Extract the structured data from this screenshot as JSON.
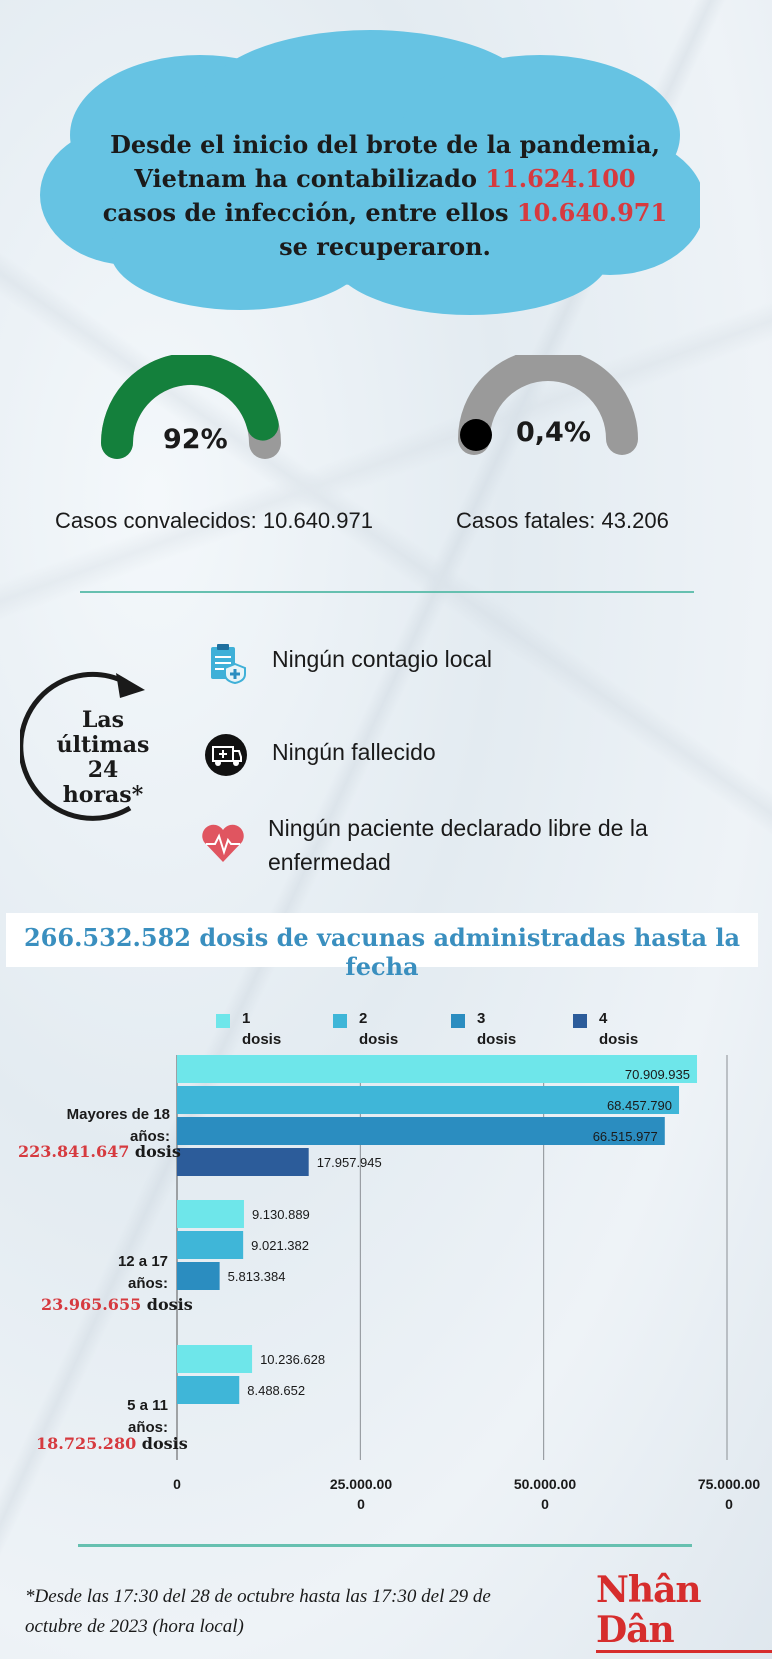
{
  "headline": {
    "part1": "Desde el inicio del brote de la pandemia,",
    "part2": "Vietnam ha contabilizado ",
    "infections": "11.624.100",
    "part3": "casos de infección, entre ellos ",
    "recovered": "10.640.971",
    "part4": "se recuperaron."
  },
  "gauges": [
    {
      "label": "92%",
      "fraction": 0.92,
      "caption": "Casos convalecidos: 10.640.971",
      "color": "#14803c"
    },
    {
      "label": "0,4%",
      "fraction": 0.004,
      "caption": "Casos fatales: 43.206",
      "color": "#000000"
    }
  ],
  "last24": {
    "title_line1": "Las",
    "title_line2": "últimas 24",
    "title_line3": "horas*",
    "items": [
      {
        "icon": "clipboard-icon",
        "text": "Ningún  contagio local"
      },
      {
        "icon": "ambulance-icon",
        "text": "Ningún fallecido"
      },
      {
        "icon": "heart-pulse-icon",
        "text_line1": "Ningún paciente declarado libre de la",
        "text_line2": "enfermedad"
      }
    ]
  },
  "banner": "266.532.582 dosis de vacunas administradas hasta la fecha",
  "chart_data": {
    "type": "bar",
    "orientation": "horizontal",
    "legend": [
      {
        "num": "1",
        "word": "dosis",
        "color": "#6ee6ea"
      },
      {
        "num": "2",
        "word": "dosis",
        "color": "#3fb6d8"
      },
      {
        "num": "3",
        "word": "dosis",
        "color": "#2b8dc0"
      },
      {
        "num": "4",
        "word": "dosis",
        "color": "#2c5c9a"
      }
    ],
    "categories": [
      {
        "label_line1": "Mayores de 18",
        "label_line2": "años:",
        "total": "223.841.647",
        "unit": "dosis",
        "values": [
          70909935,
          68457790,
          66515977,
          17957945
        ],
        "labels": [
          "70.909.935",
          "68.457.790",
          "66.515.977",
          "17.957.945"
        ]
      },
      {
        "label_line1": "12 a 17",
        "label_line2": "años:",
        "total": "23.965.655",
        "unit": "dosis",
        "values": [
          9130889,
          9021382,
          5813384
        ],
        "labels": [
          "9.130.889",
          "9.021.382",
          "5.813.384"
        ]
      },
      {
        "label_line1": "5 a 11",
        "label_line2": "años:",
        "total": "18.725.280",
        "unit": "dosis",
        "values": [
          10236628,
          8488652
        ],
        "labels": [
          "10.236.628",
          "8.488.652"
        ]
      }
    ],
    "xlim": [
      0,
      75000000
    ],
    "ticks": [
      {
        "value": 0,
        "line1": "0",
        "line2": ""
      },
      {
        "value": 25000000,
        "line1": "25.000.00",
        "line2": "0"
      },
      {
        "value": 50000000,
        "line1": "50.000.00",
        "line2": "0"
      },
      {
        "value": 75000000,
        "line1": "75.000.00",
        "line2": "0"
      }
    ],
    "grid": true
  },
  "footnote": "*Desde las 17:30 del 28 de octubre hasta las 17:30 del 29 de octubre de 2023 (hora local)",
  "logo": "Nhân Dân"
}
